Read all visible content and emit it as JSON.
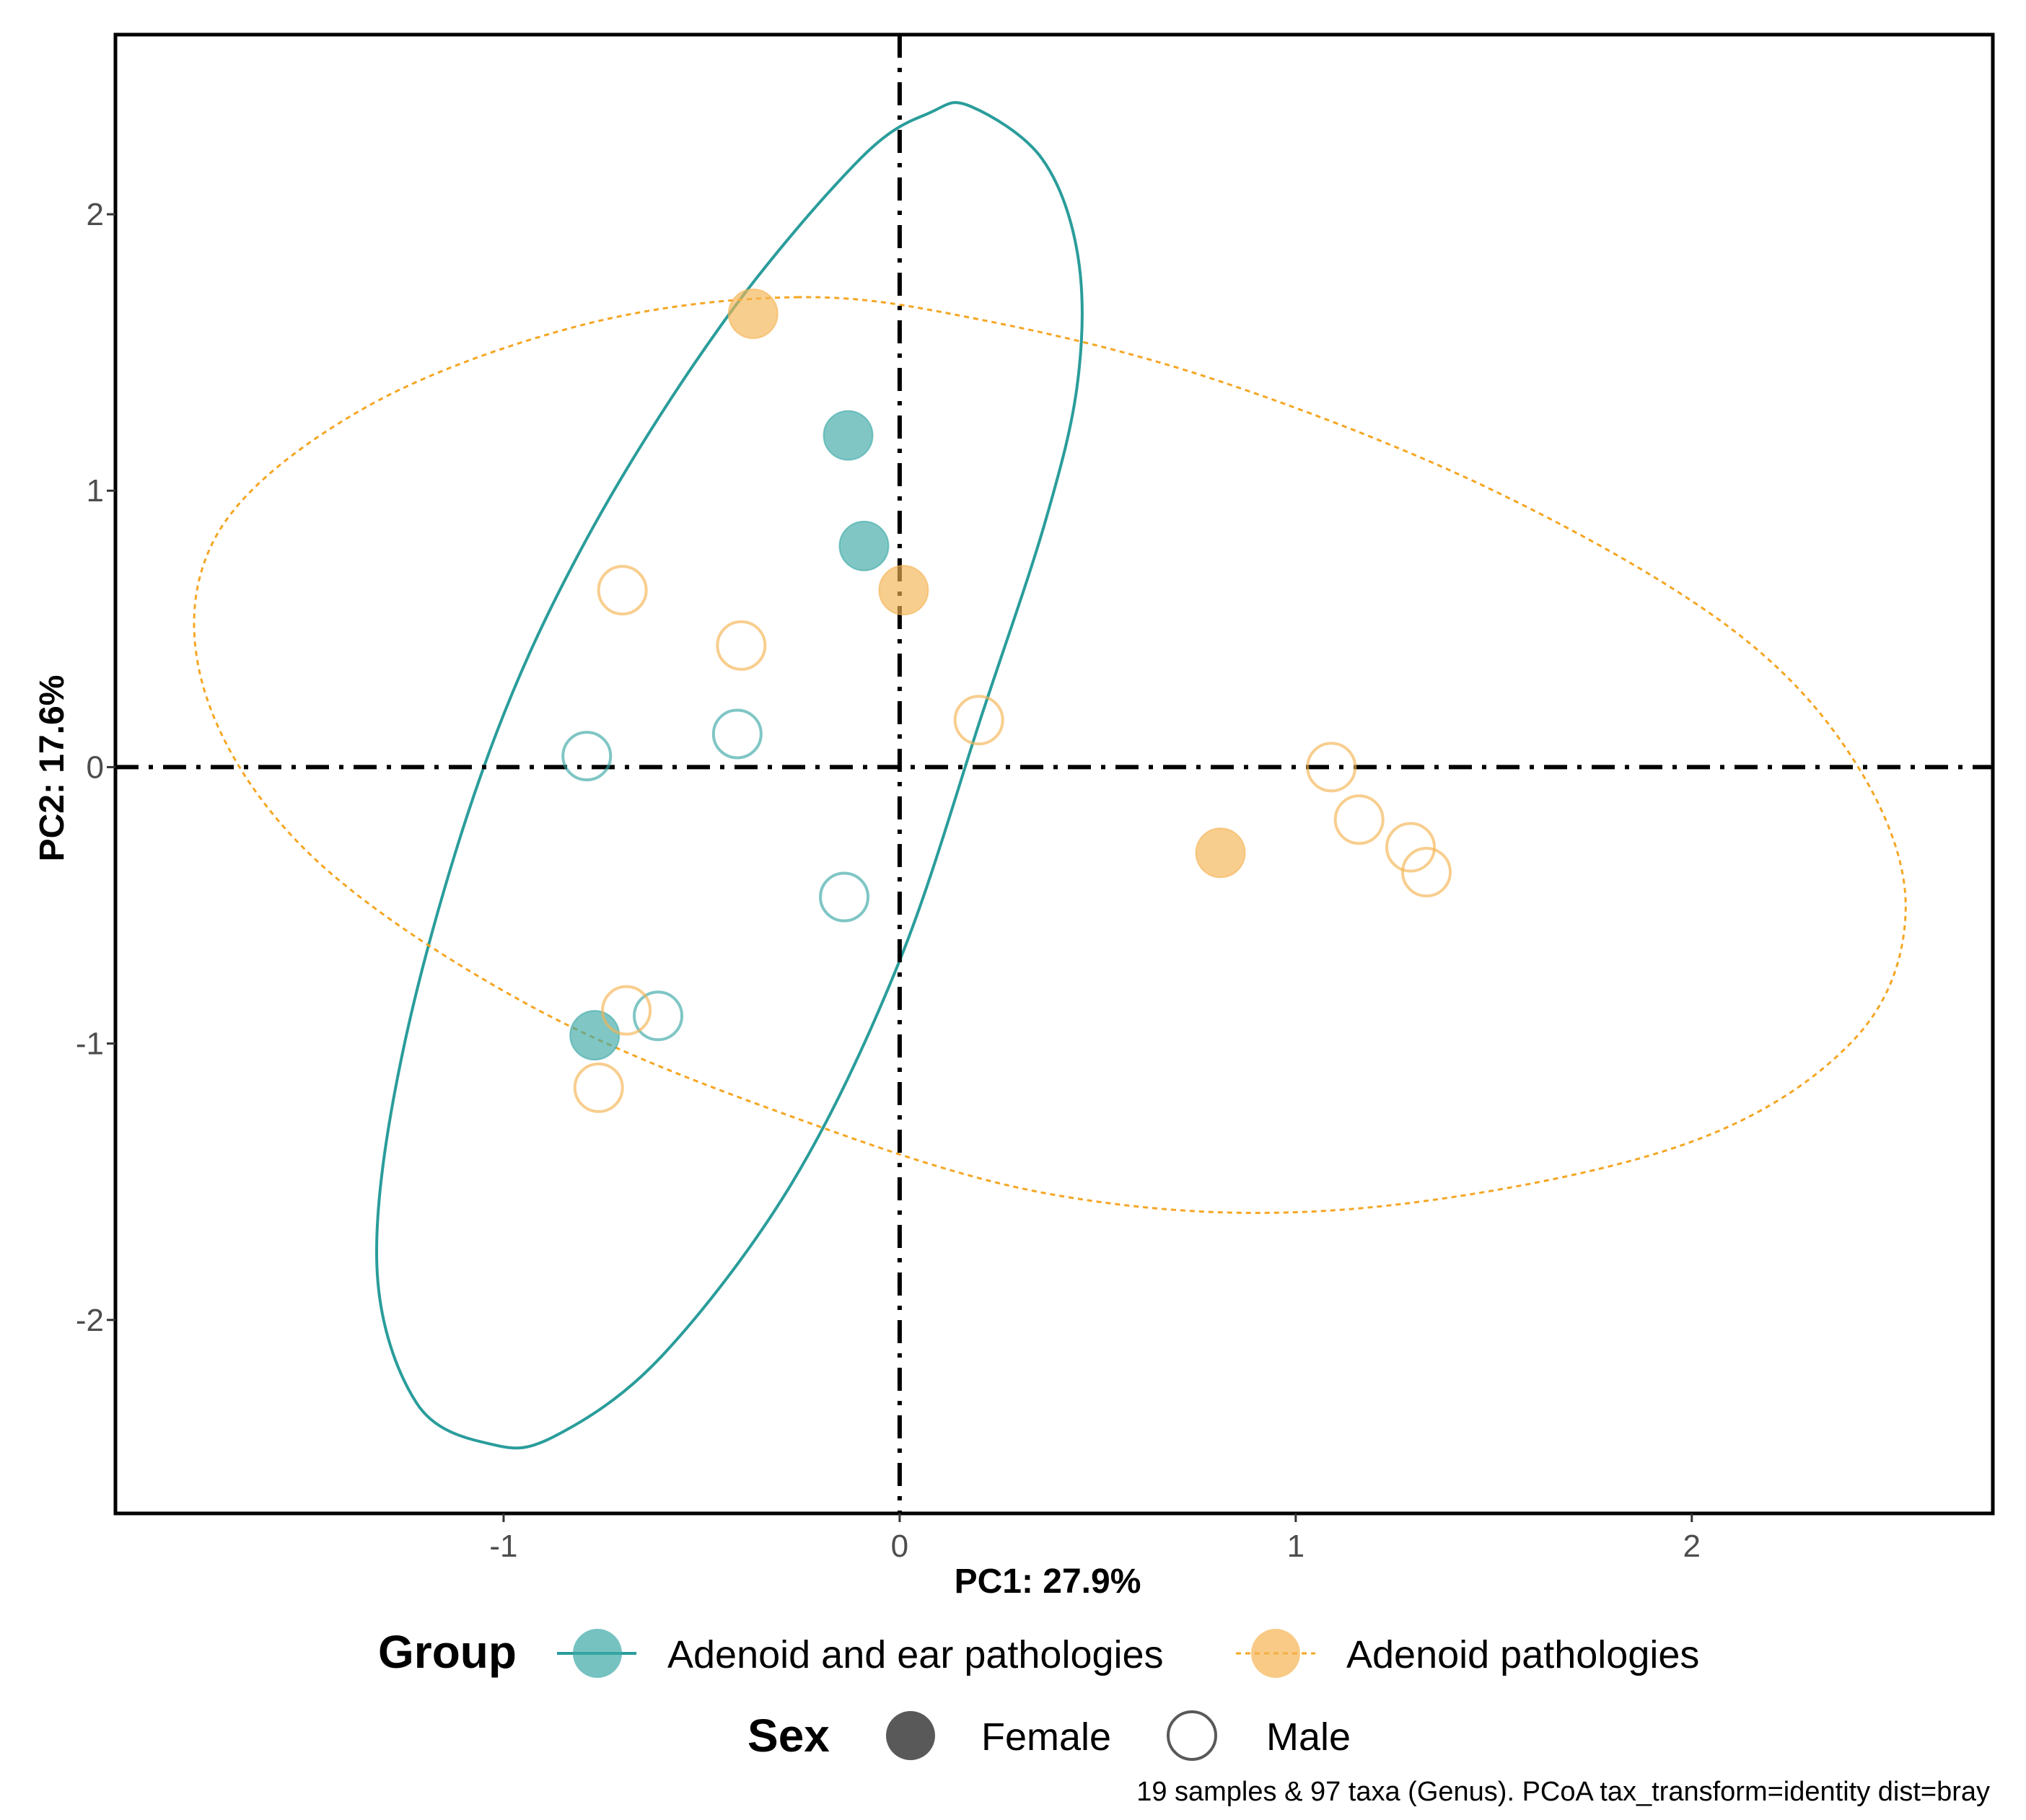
{
  "chart_data": {
    "type": "scatter",
    "xlabel": "PC1: 27.9%",
    "ylabel": "PC2: 17.6%",
    "xlim": [
      -1.98,
      2.76
    ],
    "ylim": [
      -2.7,
      2.65
    ],
    "x_ticks": [
      {
        "value": -1,
        "label": "-1"
      },
      {
        "value": 0,
        "label": "0"
      },
      {
        "value": 1,
        "label": "1"
      },
      {
        "value": 2,
        "label": "2"
      }
    ],
    "y_ticks": [
      {
        "value": -2,
        "label": "-2"
      },
      {
        "value": -1,
        "label": "-1"
      },
      {
        "value": 0,
        "label": "0"
      },
      {
        "value": 1,
        "label": "1"
      },
      {
        "value": 2,
        "label": "2"
      }
    ],
    "reference_lines": {
      "x": 0,
      "y": 0,
      "style": "dashdot"
    },
    "colors": {
      "Adenoid and ear pathologies": "#3aa8a6",
      "Adenoid pathologies": "#f5b351"
    },
    "ellipse_colors": {
      "Adenoid and ear pathologies": "#2a9d9b",
      "Adenoid pathologies": "#f5a623"
    },
    "series": [
      {
        "name": "Adenoid and ear pathologies",
        "points": [
          {
            "x": -0.13,
            "y": 1.2,
            "sex": "Female"
          },
          {
            "x": -0.09,
            "y": 0.8,
            "sex": "Female"
          },
          {
            "x": -0.77,
            "y": -0.97,
            "sex": "Female"
          },
          {
            "x": -0.79,
            "y": 0.04,
            "sex": "Male"
          },
          {
            "x": -0.41,
            "y": 0.12,
            "sex": "Male"
          },
          {
            "x": -0.14,
            "y": -0.47,
            "sex": "Male"
          },
          {
            "x": -0.61,
            "y": -0.9,
            "sex": "Male"
          }
        ],
        "ellipse": [
          {
            "x": 0.18,
            "y": 2.39
          },
          {
            "x": 0.36,
            "y": 2.2
          },
          {
            "x": 0.45,
            "y": 1.85
          },
          {
            "x": 0.45,
            "y": 1.4
          },
          {
            "x": 0.37,
            "y": 0.9
          },
          {
            "x": 0.21,
            "y": 0.2
          },
          {
            "x": 0.0,
            "y": -0.7
          },
          {
            "x": -0.27,
            "y": -1.5
          },
          {
            "x": -0.6,
            "y": -2.13
          },
          {
            "x": -0.87,
            "y": -2.42
          },
          {
            "x": -1.03,
            "y": -2.45
          },
          {
            "x": -1.22,
            "y": -2.3
          },
          {
            "x": -1.32,
            "y": -1.8
          },
          {
            "x": -1.25,
            "y": -1.0
          },
          {
            "x": -1.05,
            "y": 0.0
          },
          {
            "x": -0.8,
            "y": 0.8
          },
          {
            "x": -0.45,
            "y": 1.6
          },
          {
            "x": -0.1,
            "y": 2.2
          },
          {
            "x": 0.08,
            "y": 2.37
          }
        ]
      },
      {
        "name": "Adenoid pathologies",
        "points": [
          {
            "x": -0.37,
            "y": 1.64,
            "sex": "Female"
          },
          {
            "x": 0.01,
            "y": 0.64,
            "sex": "Female"
          },
          {
            "x": 0.81,
            "y": -0.31,
            "sex": "Female"
          },
          {
            "x": -0.7,
            "y": 0.64,
            "sex": "Male"
          },
          {
            "x": -0.4,
            "y": 0.44,
            "sex": "Male"
          },
          {
            "x": 0.2,
            "y": 0.17,
            "sex": "Male"
          },
          {
            "x": 1.09,
            "y": 0.0,
            "sex": "Male"
          },
          {
            "x": 1.16,
            "y": -0.19,
            "sex": "Male"
          },
          {
            "x": 1.29,
            "y": -0.29,
            "sex": "Male"
          },
          {
            "x": 1.33,
            "y": -0.38,
            "sex": "Male"
          },
          {
            "x": -0.69,
            "y": -0.88,
            "sex": "Male"
          },
          {
            "x": -0.76,
            "y": -1.16,
            "sex": "Male"
          }
        ],
        "ellipse": [
          {
            "x": -0.26,
            "y": 1.7
          },
          {
            "x": 0.2,
            "y": 1.62
          },
          {
            "x": 0.8,
            "y": 1.4
          },
          {
            "x": 1.5,
            "y": 1.0
          },
          {
            "x": 2.1,
            "y": 0.5
          },
          {
            "x": 2.42,
            "y": 0.0
          },
          {
            "x": 2.54,
            "y": -0.52
          },
          {
            "x": 2.4,
            "y": -1.0
          },
          {
            "x": 1.95,
            "y": -1.38
          },
          {
            "x": 1.13,
            "y": -1.6
          },
          {
            "x": 0.4,
            "y": -1.55
          },
          {
            "x": -0.3,
            "y": -1.25
          },
          {
            "x": -0.95,
            "y": -0.85
          },
          {
            "x": -1.5,
            "y": -0.3
          },
          {
            "x": -1.76,
            "y": 0.3
          },
          {
            "x": -1.72,
            "y": 0.85
          },
          {
            "x": -1.35,
            "y": 1.3
          },
          {
            "x": -0.8,
            "y": 1.6
          }
        ]
      }
    ],
    "legend": {
      "group_title": "Group",
      "group_entries": [
        "Adenoid and ear pathologies",
        "Adenoid pathologies"
      ],
      "sex_title": "Sex",
      "sex_entries": [
        "Female",
        "Male"
      ],
      "sex_symbol_color": "#595959",
      "placement": "bottom"
    },
    "caption": "19 samples & 97 taxa (Genus). PCoA tax_transform=identity dist=bray"
  }
}
